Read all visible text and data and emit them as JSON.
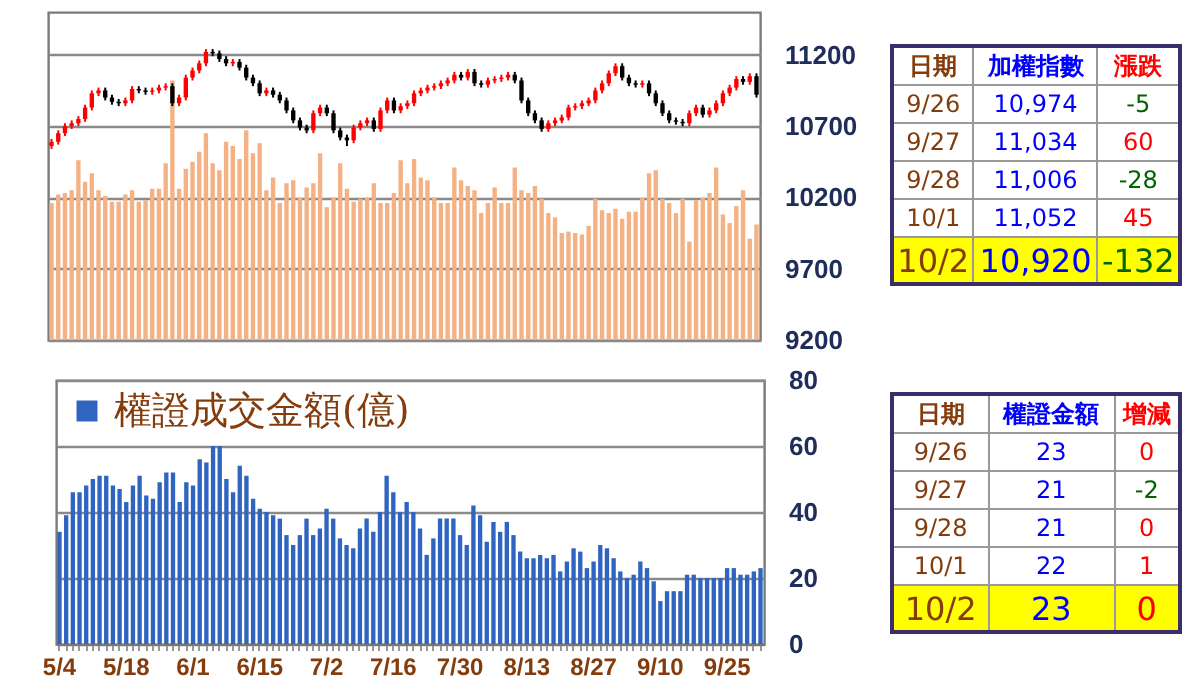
{
  "chart_data": [
    {
      "type": "candlestick",
      "categories": [
        null,
        null,
        null,
        null,
        null,
        null,
        null,
        null,
        null,
        null,
        null,
        null,
        null,
        null,
        null,
        null,
        null,
        null,
        null,
        null,
        null,
        null,
        null,
        null,
        null,
        null,
        null,
        null,
        null,
        null,
        null,
        null,
        null,
        null,
        null,
        null,
        null,
        null,
        null,
        null,
        null,
        null,
        null,
        null,
        null,
        null,
        null,
        null,
        null,
        null,
        null,
        null,
        null,
        null,
        null,
        null,
        null,
        null,
        null,
        null,
        null,
        null,
        null,
        null,
        null,
        null,
        null,
        null,
        null,
        null,
        null,
        null,
        null,
        null,
        null,
        null,
        null,
        null,
        null,
        null,
        null,
        null,
        null,
        null,
        null,
        null,
        null,
        null,
        null,
        null,
        null,
        null,
        null,
        null,
        null,
        null,
        null,
        null,
        null,
        null,
        null,
        null,
        null,
        null,
        null,
        null
      ],
      "ohlc": [
        [
          10560,
          10610,
          10540,
          10590
        ],
        [
          10590,
          10670,
          10570,
          10650
        ],
        [
          10650,
          10720,
          10630,
          10700
        ],
        [
          10700,
          10740,
          10680,
          10720
        ],
        [
          10720,
          10770,
          10700,
          10750
        ],
        [
          10750,
          10850,
          10730,
          10830
        ],
        [
          10830,
          10950,
          10810,
          10930
        ],
        [
          10930,
          10970,
          10910,
          10950
        ],
        [
          10950,
          10970,
          10880,
          10900
        ],
        [
          10900,
          10920,
          10850,
          10870
        ],
        [
          10870,
          10890,
          10840,
          10860
        ],
        [
          10860,
          10900,
          10840,
          10880
        ],
        [
          10880,
          10980,
          10860,
          10960
        ],
        [
          10960,
          10980,
          10930,
          10950
        ],
        [
          10950,
          10970,
          10920,
          10940
        ],
        [
          10940,
          10970,
          10920,
          10950
        ],
        [
          10950,
          10990,
          10930,
          10970
        ],
        [
          10970,
          11000,
          10950,
          10980
        ],
        [
          10980,
          11000,
          10840,
          10860
        ],
        [
          10860,
          10920,
          10840,
          10900
        ],
        [
          10900,
          11060,
          10880,
          11040
        ],
        [
          11040,
          11110,
          11020,
          11090
        ],
        [
          11090,
          11160,
          11070,
          11140
        ],
        [
          11140,
          11240,
          11120,
          11220
        ],
        [
          11220,
          11240,
          11190,
          11210
        ],
        [
          11210,
          11230,
          11150,
          11170
        ],
        [
          11170,
          11190,
          11120,
          11140
        ],
        [
          11140,
          11170,
          11120,
          11150
        ],
        [
          11150,
          11170,
          11090,
          11110
        ],
        [
          11110,
          11130,
          11020,
          11040
        ],
        [
          11040,
          11060,
          10980,
          11000
        ],
        [
          11000,
          11020,
          10910,
          10930
        ],
        [
          10930,
          10970,
          10910,
          10950
        ],
        [
          10950,
          10970,
          10900,
          10920
        ],
        [
          10920,
          10940,
          10860,
          10880
        ],
        [
          10880,
          10900,
          10790,
          10810
        ],
        [
          10810,
          10830,
          10720,
          10740
        ],
        [
          10740,
          10760,
          10670,
          10690
        ],
        [
          10690,
          10710,
          10650,
          10670
        ],
        [
          10670,
          10810,
          10650,
          10790
        ],
        [
          10790,
          10850,
          10770,
          10830
        ],
        [
          10830,
          10850,
          10770,
          10790
        ],
        [
          10790,
          10810,
          10650,
          10670
        ],
        [
          10670,
          10690,
          10600,
          10620
        ],
        [
          10620,
          10640,
          10560,
          10600
        ],
        [
          10600,
          10710,
          10580,
          10690
        ],
        [
          10690,
          10740,
          10670,
          10720
        ],
        [
          10720,
          10760,
          10700,
          10740
        ],
        [
          10740,
          10760,
          10660,
          10680
        ],
        [
          10680,
          10830,
          10660,
          10810
        ],
        [
          10810,
          10900,
          10790,
          10880
        ],
        [
          10880,
          10900,
          10790,
          10810
        ],
        [
          10810,
          10860,
          10790,
          10840
        ],
        [
          10840,
          10880,
          10820,
          10860
        ],
        [
          10860,
          10950,
          10840,
          10930
        ],
        [
          10930,
          10970,
          10910,
          10950
        ],
        [
          10950,
          10990,
          10930,
          10970
        ],
        [
          10970,
          11000,
          10950,
          10980
        ],
        [
          10980,
          11020,
          10960,
          11000
        ],
        [
          11000,
          11040,
          10980,
          11020
        ],
        [
          11020,
          11080,
          11000,
          11060
        ],
        [
          11060,
          11080,
          11020,
          11040
        ],
        [
          11040,
          11100,
          11020,
          11080
        ],
        [
          11080,
          11100,
          10980,
          11000
        ],
        [
          11000,
          11020,
          10970,
          10990
        ],
        [
          10990,
          11040,
          10970,
          11020
        ],
        [
          11020,
          11050,
          11000,
          11030
        ],
        [
          11030,
          11060,
          11010,
          11040
        ],
        [
          11040,
          11080,
          11020,
          11060
        ],
        [
          11060,
          11080,
          11000,
          11020
        ],
        [
          11020,
          11040,
          10860,
          10880
        ],
        [
          10880,
          10900,
          10770,
          10790
        ],
        [
          10790,
          10810,
          10720,
          10740
        ],
        [
          10740,
          10760,
          10660,
          10680
        ],
        [
          10680,
          10740,
          10660,
          10720
        ],
        [
          10720,
          10760,
          10700,
          10740
        ],
        [
          10740,
          10780,
          10720,
          10760
        ],
        [
          10760,
          10850,
          10740,
          10830
        ],
        [
          10830,
          10860,
          10810,
          10840
        ],
        [
          10840,
          10880,
          10820,
          10860
        ],
        [
          10860,
          10900,
          10840,
          10880
        ],
        [
          10880,
          10970,
          10860,
          10950
        ],
        [
          10950,
          11020,
          10930,
          11000
        ],
        [
          11000,
          11090,
          10980,
          11070
        ],
        [
          11070,
          11140,
          11050,
          11120
        ],
        [
          11120,
          11140,
          11020,
          11040
        ],
        [
          11040,
          11060,
          10980,
          11000
        ],
        [
          11000,
          11020,
          10970,
          10990
        ],
        [
          10990,
          11020,
          10970,
          11000
        ],
        [
          11000,
          11020,
          10910,
          10930
        ],
        [
          10930,
          10950,
          10840,
          10860
        ],
        [
          10860,
          10880,
          10770,
          10790
        ],
        [
          10790,
          10810,
          10720,
          10740
        ],
        [
          10740,
          10760,
          10710,
          10730
        ],
        [
          10730,
          10750,
          10700,
          10720
        ],
        [
          10720,
          10810,
          10700,
          10790
        ],
        [
          10790,
          10850,
          10770,
          10830
        ],
        [
          10830,
          10850,
          10760,
          10780
        ],
        [
          10780,
          10830,
          10760,
          10810
        ],
        [
          10810,
          10880,
          10790,
          10860
        ],
        [
          10860,
          10950,
          10840,
          10930
        ],
        [
          10930,
          10990,
          10910,
          10970
        ],
        [
          10970,
          11050,
          10950,
          11030
        ],
        [
          11030,
          11050,
          10990,
          11010
        ],
        [
          11010,
          11070,
          10990,
          11050
        ],
        [
          11050,
          11070,
          10900,
          10920
        ]
      ],
      "series": [
        {
          "type": "bar",
          "color": "#f4b183",
          "values": [
            10160,
            10220,
            10230,
            10250,
            10460,
            10310,
            10370,
            10250,
            10210,
            10170,
            10170,
            10220,
            10250,
            10170,
            10180,
            10260,
            10260,
            10440,
            11020,
            10260,
            10400,
            10450,
            10520,
            10650,
            10440,
            10390,
            10590,
            10560,
            10470,
            10670,
            10510,
            10580,
            10250,
            10340,
            10160,
            10300,
            10320,
            10200,
            10270,
            10300,
            10510,
            10130,
            10200,
            10440,
            10260,
            10170,
            10190,
            10200,
            10300,
            10160,
            10160,
            10230,
            10460,
            10300,
            10470,
            10340,
            10320,
            10200,
            10160,
            10160,
            10410,
            10320,
            10280,
            10250,
            10090,
            10160,
            10270,
            10160,
            10160,
            10410,
            10250,
            10230,
            10280,
            10190,
            10090,
            10060,
            9950,
            9960,
            9950,
            9940,
            10000,
            10190,
            10110,
            10090,
            10120,
            10050,
            10100,
            10100,
            10200,
            10370,
            10390,
            10190,
            10160,
            10090,
            10190,
            9890,
            10180,
            10200,
            10230,
            10410,
            10080,
            10020,
            10140,
            10250,
            9910,
            10010
          ]
        }
      ],
      "ylim": [
        9200,
        11500
      ],
      "yticks": [
        9200,
        9700,
        10200,
        10700,
        11200
      ],
      "grid": "y",
      "tick_labels": "y"
    },
    {
      "type": "other",
      "categories": [
        "日期",
        "加權指數",
        "漲跌"
      ],
      "annotations": [
        "9/26",
        "10,974",
        "-5",
        "9/27",
        "11,034",
        "60",
        "9/28",
        "11,006",
        "-28",
        "10/1",
        "11,052",
        "45",
        "10/2",
        "10,920",
        "-132"
      ]
    },
    {
      "type": "bar",
      "categories": [
        "5/4",
        null,
        null,
        null,
        null,
        null,
        null,
        null,
        null,
        null,
        "5/18",
        null,
        null,
        null,
        null,
        null,
        null,
        null,
        null,
        null,
        "6/1",
        null,
        null,
        null,
        null,
        null,
        null,
        null,
        null,
        null,
        "6/15",
        null,
        null,
        null,
        null,
        null,
        null,
        null,
        null,
        null,
        "7/2",
        null,
        null,
        null,
        null,
        null,
        null,
        null,
        null,
        null,
        "7/16",
        null,
        null,
        null,
        null,
        null,
        null,
        null,
        null,
        null,
        "7/30",
        null,
        null,
        null,
        null,
        null,
        null,
        null,
        null,
        null,
        "8/13",
        null,
        null,
        null,
        null,
        null,
        null,
        null,
        null,
        null,
        "8/27",
        null,
        null,
        null,
        null,
        null,
        null,
        null,
        null,
        null,
        "9/10",
        null,
        null,
        null,
        null,
        null,
        null,
        null,
        null,
        null,
        "9/25",
        null,
        null,
        null,
        null,
        null
      ],
      "series": [
        {
          "name": "權證成交金額(億)",
          "color": "#2f65c0",
          "values": [
            34,
            39,
            46,
            46,
            48,
            50,
            51,
            51,
            48,
            47,
            43,
            48,
            51,
            45,
            44,
            49,
            52,
            52,
            43,
            49,
            48,
            56,
            55,
            60,
            60,
            50,
            46,
            54,
            51,
            44,
            41,
            40,
            39,
            38,
            33,
            30,
            33,
            38,
            33,
            35,
            41,
            38,
            32,
            30,
            29,
            35,
            38,
            34,
            40,
            51,
            46,
            40,
            43,
            40,
            35,
            27,
            32,
            38,
            38,
            38,
            33,
            30,
            42,
            39,
            31,
            37,
            34,
            37,
            33,
            28,
            26,
            26,
            27,
            26,
            27,
            22,
            25,
            29,
            28,
            23,
            25,
            30,
            29,
            26,
            22,
            20,
            21,
            25,
            23,
            19,
            13,
            16,
            16,
            16,
            21,
            21,
            20,
            20,
            20,
            20,
            23,
            23,
            21,
            21,
            22,
            23
          ]
        }
      ],
      "ylim": [
        0,
        80
      ],
      "yticks": [
        0,
        20,
        40,
        60,
        80
      ],
      "grid": "y",
      "legend": "top left"
    },
    {
      "type": "other",
      "categories": [
        "日期",
        "權證金額",
        "增減"
      ],
      "annotations": [
        "9/26",
        "23",
        "0",
        "9/27",
        "21",
        "-2",
        "9/28",
        "21",
        "0",
        "10/1",
        "22",
        "1",
        "10/2",
        "23",
        "0"
      ]
    }
  ]
}
